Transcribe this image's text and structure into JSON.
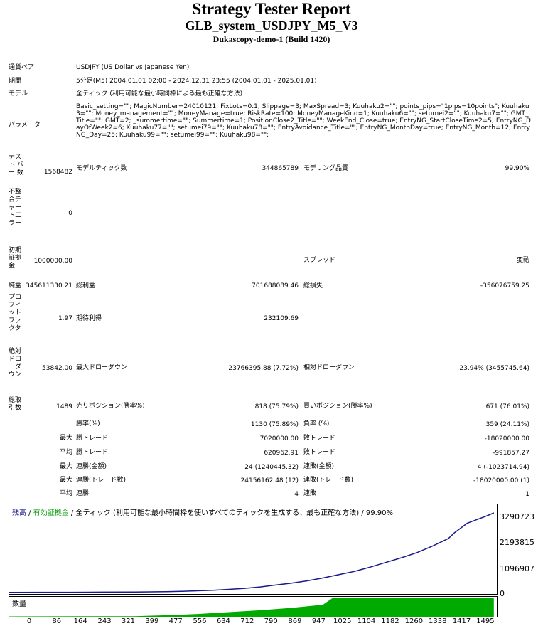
{
  "report": {
    "title": "Strategy Tester Report",
    "subtitle": "GLB_system_USDJPY_M5_V3",
    "server": "Dukascopy-demo-1 (Build 1420)"
  },
  "info": {
    "symbol_label": "通貨ペア",
    "symbol_value": "USDJPY (US Dollar vs Japanese Yen)",
    "period_label": "期間",
    "period_value": "5分足(M5) 2004.01.01 02:00 - 2024.12.31 23:55 (2004.01.01 - 2025.01.01)",
    "model_label": "モデル",
    "model_value": "全ティック (利用可能な最小時間枠による最も正確な方法)",
    "params_label": "パラメーター",
    "params_value": "Basic_setting=\"\"; MagicNumber=24010121; FixLots=0.1; Slippage=3; MaxSpread=3; Kuuhaku2=\"\"; points_pips=\"1pips=10points\"; Kuuhaku3=\"\"; Money_management=\"\"; MoneyManage=true; RiskRate=100; MoneyManageKind=1; Kuuhaku6=\"\"; setumei2=\"\"; Kuuhaku7=\"\"; GMT_Title=\"\"; GMT=2; _summertime=\"\"; Summertime=1; PositionClose2_Title=\"\"; WeekEnd_Close=true; EntryNG_StartCloseTime2=5; EntryNG_DayOfWeek2=6; Kuuhaku77=\"\"; setumei79=\"\"; Kuuhaku78=\"\"; EntryAvoidance_Title=\"\"; EntryNG_MonthDay=true; EntryNG_Month=12; EntryNG_Day=25; Kuuhaku99=\"\"; setumei99=\"\"; Kuuhaku98=\"\";"
  },
  "stats": {
    "bars_label": "テスト バー 数",
    "bars_value": "1568482",
    "ticks_label": "モデルティック数",
    "ticks_value": "344865789",
    "quality_label": "モデリング品質",
    "quality_value": "99.90%",
    "mismatch_label": "不整合チャートエラー",
    "mismatch_value": "0",
    "deposit_label": "初期証拠金",
    "deposit_value": "1000000.00",
    "spread_label": "スプレッド",
    "spread_value": "変動",
    "net_label": "純益",
    "net_value": "345611330.21",
    "gross_profit_label": "総利益",
    "gross_profit_value": "701688089.46",
    "gross_loss_label": "総損失",
    "gross_loss_value": "-356076759.25",
    "pf_label": "プロフィットファクタ",
    "pf_value": "1.97",
    "payoff_label": "期待利得",
    "payoff_value": "232109.69",
    "abs_dd_label": "絶対ドローダウン",
    "abs_dd_value": "53842.00",
    "max_dd_label": "最大ドローダウン",
    "max_dd_value": "23766395.88 (7.72%)",
    "rel_dd_label": "相対ドローダウン",
    "rel_dd_value": "23.94% (3455745.64)",
    "trades_label": "総取引数",
    "trades_value": "1489",
    "short_label": "売りポジション(勝率%)",
    "short_value": "818 (75.79%)",
    "long_label": "買いポジション(勝率%)",
    "long_value": "671 (76.01%)",
    "winrate_label": "勝率(%)",
    "winrate_value": "1130 (75.89%)",
    "lossrate_label": "負率 (%)",
    "lossrate_value": "359 (24.11%)",
    "max_label": "最大",
    "avg_label": "平均",
    "largest_win_label": "勝トレード",
    "largest_win_value": "7020000.00",
    "largest_loss_label": "敗トレード",
    "largest_loss_value": "-18020000.00",
    "avg_win_label": "勝トレード",
    "avg_win_value": "620962.91",
    "avg_loss_label": "敗トレード",
    "avg_loss_value": "-991857.27",
    "consec_wins_amt_label": "連勝(金額)",
    "consec_wins_amt_value": "24 (1240445.32)",
    "consec_loss_amt_label": "連敗(金額)",
    "consec_loss_amt_value": "4 (-1023714.94)",
    "consec_profit_label": "連勝(トレード数)",
    "consec_profit_value": "24156162.48 (12)",
    "consec_lossamt_label": "連敗(トレード数)",
    "consec_lossamt_value": "-18020000.00 (1)",
    "avg_consec_win_label": "連勝",
    "avg_consec_win_value": "4",
    "avg_consec_loss_label": "連敗",
    "avg_consec_loss_value": "1"
  },
  "chart_data": {
    "type": "line",
    "legend_balance": "残高",
    "legend_equity": "有効証拠金",
    "legend_sep": " / ",
    "legend_model": "全ティック (利用可能な最小時間枠を使いすべてのティックを生成する、最も正確な方法) ",
    "legend_quality": "/ 99.90%",
    "volume_label": "数量",
    "colors": {
      "balance": "#1a1a8c",
      "equity": "#009900",
      "volume": "#00aa00",
      "legend_balance": "#1a1a8c",
      "legend_equity": "#009900"
    },
    "y_ticks": [
      "3290723",
      "2193815",
      "1096907",
      "0"
    ],
    "ylim": [
      0,
      3450000
    ],
    "x_ticks": [
      "0",
      "86",
      "164",
      "243",
      "321",
      "399",
      "477",
      "556",
      "634",
      "712",
      "790",
      "869",
      "947",
      "1025",
      "1104",
      "1182",
      "1260",
      "1338",
      "1417",
      "1495"
    ],
    "xlim": [
      0,
      1550
    ],
    "series": [
      {
        "x": [
          0,
          100,
          200,
          300,
          400,
          500,
          550,
          600,
          650,
          700,
          750,
          800,
          850,
          900,
          950,
          1000,
          1050,
          1100,
          1150,
          1200,
          1250,
          1300,
          1350,
          1400,
          1420,
          1440,
          1460,
          1480,
          1500,
          1520,
          1545
        ],
        "values": [
          10000,
          11000,
          13000,
          17000,
          25000,
          40000,
          55000,
          75000,
          100000,
          135000,
          180000,
          240000,
          320000,
          400000,
          500000,
          620000,
          760000,
          900000,
          1080000,
          1280000,
          1480000,
          1700000,
          1980000,
          2300000,
          2550000,
          2750000,
          2950000,
          3050000,
          3150000,
          3250000,
          3390000
        ]
      }
    ],
    "volume": {
      "x": [
        0,
        400,
        500,
        600,
        700,
        800,
        900,
        1000,
        1030,
        1100,
        1545
      ],
      "values": [
        0.02,
        0.03,
        0.08,
        0.15,
        0.25,
        0.35,
        0.48,
        0.65,
        1,
        1,
        1
      ]
    }
  }
}
